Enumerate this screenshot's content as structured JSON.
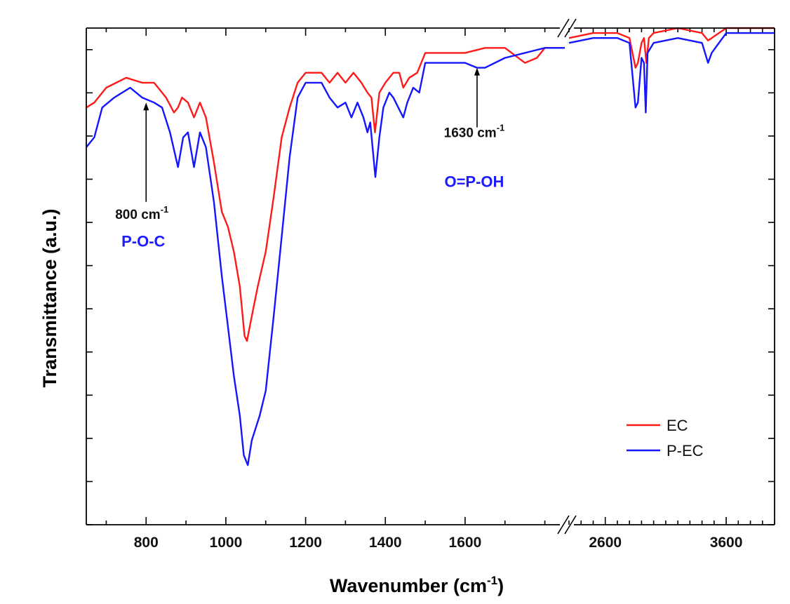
{
  "chart_data": {
    "type": "line",
    "xlabel": "Wavenumber (cm",
    "xlabel_sup": "-1",
    "xlabel_close": ")",
    "ylabel": "Transmittance (a.u.)",
    "x_broken_axis": true,
    "x_segments": [
      {
        "range": [
          650,
          1850
        ],
        "ticks": [
          800,
          1000,
          1200,
          1400,
          1600
        ]
      },
      {
        "range": [
          2300,
          4000
        ],
        "ticks": [
          2600,
          3600
        ]
      }
    ],
    "y_range": [
      0,
      100
    ],
    "y_tick_labels": false,
    "legend_position": "bottom-right",
    "series": [
      {
        "name": "EC",
        "color": "#ff1a1a",
        "segments": [
          [
            [
              650,
              84
            ],
            [
              670,
              85
            ],
            [
              700,
              88
            ],
            [
              750,
              90
            ],
            [
              790,
              89
            ],
            [
              820,
              89
            ],
            [
              850,
              86
            ],
            [
              870,
              83
            ],
            [
              880,
              84
            ],
            [
              890,
              86
            ],
            [
              905,
              85
            ],
            [
              920,
              82
            ],
            [
              935,
              85
            ],
            [
              950,
              82
            ],
            [
              970,
              73
            ],
            [
              990,
              63
            ],
            [
              1005,
              60
            ],
            [
              1020,
              55
            ],
            [
              1035,
              48
            ],
            [
              1047,
              38
            ],
            [
              1053,
              37
            ],
            [
              1065,
              42
            ],
            [
              1080,
              48
            ],
            [
              1100,
              55
            ],
            [
              1120,
              66
            ],
            [
              1140,
              78
            ],
            [
              1160,
              84
            ],
            [
              1180,
              89
            ],
            [
              1200,
              91
            ],
            [
              1240,
              91
            ],
            [
              1260,
              89
            ],
            [
              1280,
              91
            ],
            [
              1300,
              89
            ],
            [
              1320,
              91
            ],
            [
              1340,
              89
            ],
            [
              1355,
              87
            ],
            [
              1365,
              86
            ],
            [
              1374,
              79
            ],
            [
              1385,
              87
            ],
            [
              1400,
              89
            ],
            [
              1420,
              91
            ],
            [
              1435,
              91
            ],
            [
              1445,
              88
            ],
            [
              1460,
              90
            ],
            [
              1480,
              91
            ],
            [
              1500,
              95
            ],
            [
              1550,
              95
            ],
            [
              1600,
              95
            ],
            [
              1650,
              96
            ],
            [
              1700,
              96
            ],
            [
              1750,
              93
            ],
            [
              1780,
              94
            ],
            [
              1800,
              96
            ],
            [
              1850,
              96
            ]
          ],
          [
            [
              2300,
              98
            ],
            [
              2500,
              99
            ],
            [
              2600,
              99
            ],
            [
              2700,
              99
            ],
            [
              2800,
              98
            ],
            [
              2850,
              92
            ],
            [
              2870,
              93
            ],
            [
              2900,
              97
            ],
            [
              2920,
              98
            ],
            [
              2940,
              93
            ],
            [
              2960,
              98
            ],
            [
              3000,
              99
            ],
            [
              3200,
              100
            ],
            [
              3400,
              99
            ],
            [
              3450,
              97.5
            ],
            [
              3480,
              98
            ],
            [
              3600,
              100
            ],
            [
              3800,
              100
            ],
            [
              4000,
              100
            ]
          ]
        ]
      },
      {
        "name": "P-EC",
        "color": "#1515ff",
        "segments": [
          [
            [
              650,
              76
            ],
            [
              670,
              78
            ],
            [
              690,
              84
            ],
            [
              720,
              86
            ],
            [
              760,
              88
            ],
            [
              790,
              86
            ],
            [
              820,
              85
            ],
            [
              840,
              84
            ],
            [
              860,
              79
            ],
            [
              880,
              72
            ],
            [
              893,
              78
            ],
            [
              905,
              79
            ],
            [
              920,
              72
            ],
            [
              935,
              79
            ],
            [
              950,
              76
            ],
            [
              970,
              65
            ],
            [
              990,
              50
            ],
            [
              1005,
              40
            ],
            [
              1020,
              30
            ],
            [
              1035,
              22
            ],
            [
              1045,
              14
            ],
            [
              1055,
              12
            ],
            [
              1065,
              17
            ],
            [
              1085,
              22
            ],
            [
              1100,
              27
            ],
            [
              1120,
              42
            ],
            [
              1140,
              58
            ],
            [
              1160,
              74
            ],
            [
              1180,
              86
            ],
            [
              1200,
              89
            ],
            [
              1240,
              89
            ],
            [
              1260,
              86
            ],
            [
              1280,
              84
            ],
            [
              1300,
              85
            ],
            [
              1315,
              82
            ],
            [
              1330,
              85
            ],
            [
              1345,
              82
            ],
            [
              1355,
              79
            ],
            [
              1362,
              81
            ],
            [
              1375,
              70
            ],
            [
              1385,
              78
            ],
            [
              1395,
              84
            ],
            [
              1410,
              87
            ],
            [
              1420,
              86
            ],
            [
              1445,
              82
            ],
            [
              1455,
              85
            ],
            [
              1470,
              88
            ],
            [
              1485,
              87
            ],
            [
              1500,
              93
            ],
            [
              1550,
              93
            ],
            [
              1600,
              93
            ],
            [
              1630,
              92
            ],
            [
              1650,
              92
            ],
            [
              1700,
              94
            ],
            [
              1750,
              95
            ],
            [
              1800,
              96
            ],
            [
              1850,
              96
            ]
          ],
          [
            [
              2300,
              97
            ],
            [
              2500,
              98
            ],
            [
              2600,
              98
            ],
            [
              2700,
              98
            ],
            [
              2800,
              97
            ],
            [
              2850,
              84
            ],
            [
              2870,
              85
            ],
            [
              2900,
              94
            ],
            [
              2920,
              93
            ],
            [
              2935,
              83
            ],
            [
              2950,
              95
            ],
            [
              3000,
              97
            ],
            [
              3200,
              98
            ],
            [
              3400,
              97
            ],
            [
              3450,
              93
            ],
            [
              3480,
              95
            ],
            [
              3600,
              99
            ],
            [
              3800,
              99
            ],
            [
              4000,
              99
            ]
          ]
        ]
      }
    ],
    "annotations": [
      {
        "label": "800 cm",
        "sup": "-1",
        "x": 800,
        "arrow_tip_y": 85,
        "arrow_tail_y": 65,
        "side": "below"
      },
      {
        "label": "1630 cm",
        "sup": "-1",
        "x": 1630,
        "arrow_tip_y": 92,
        "arrow_tail_y": 80,
        "side": "below"
      }
    ],
    "group_labels": [
      {
        "text": "P-O-C",
        "x": 800,
        "y": 56
      },
      {
        "text": "O=P-OH",
        "x": 1630,
        "y": 68
      }
    ]
  }
}
